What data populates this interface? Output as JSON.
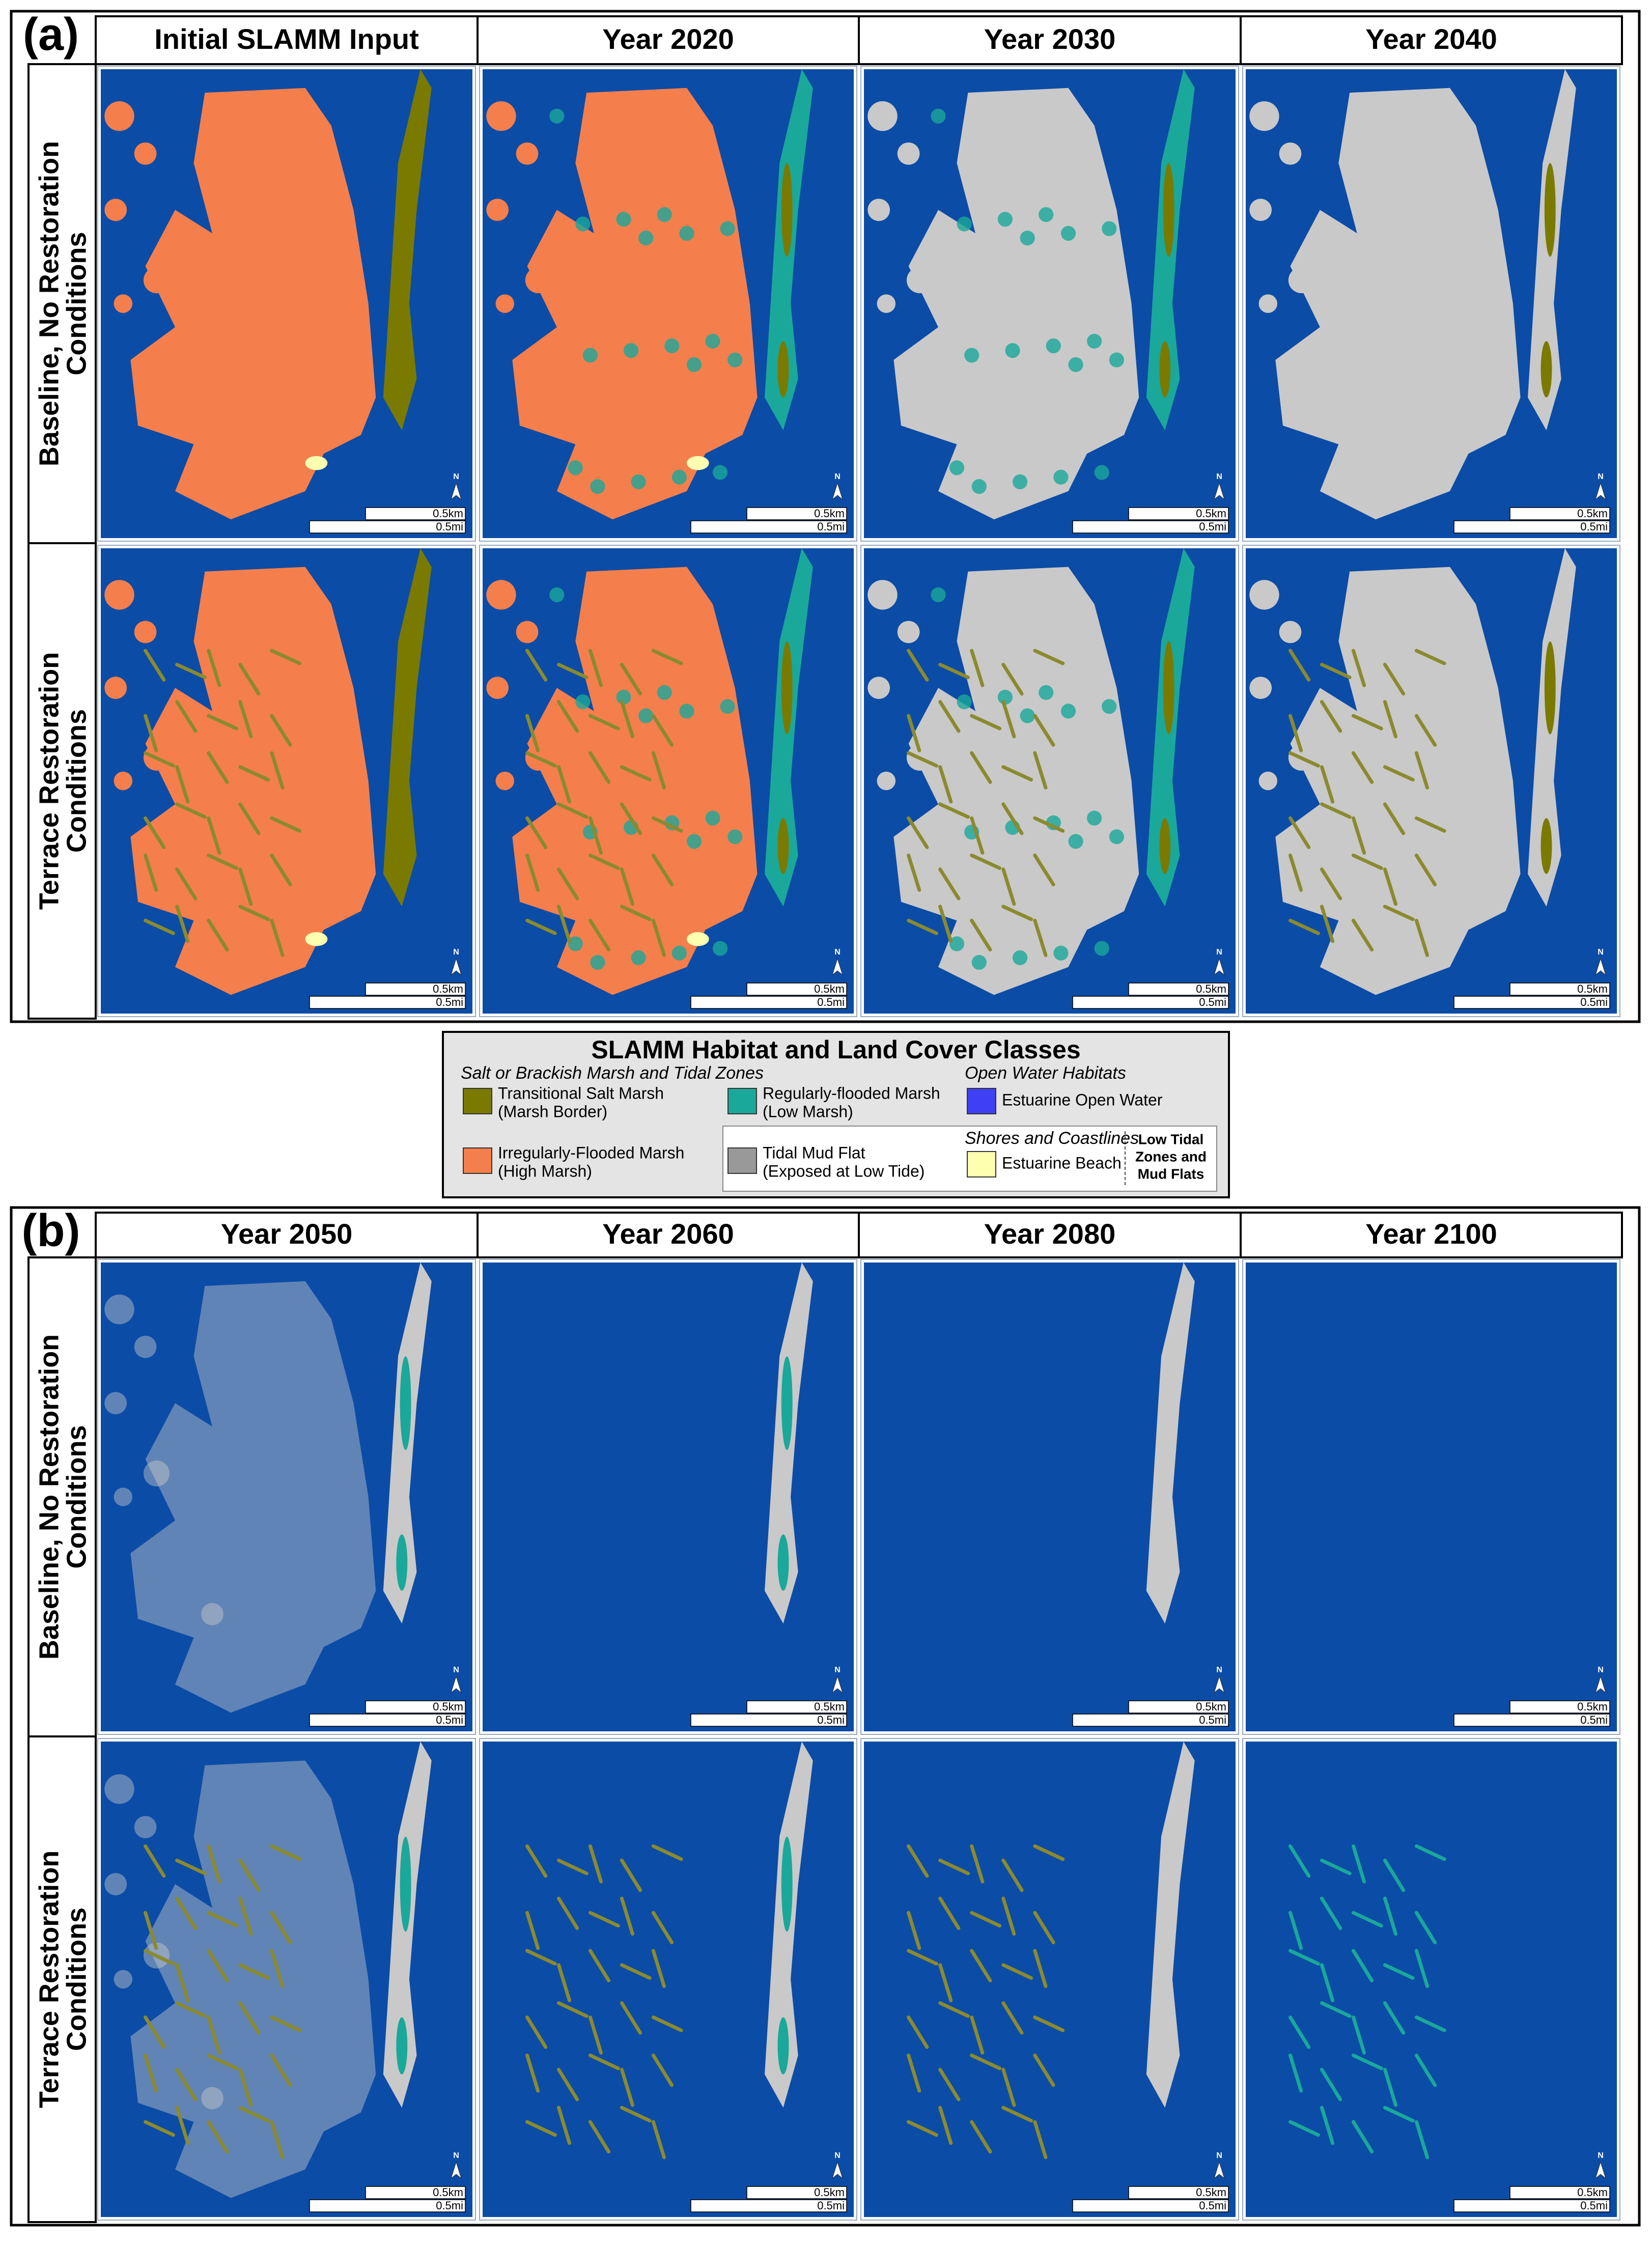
{
  "panels": [
    {
      "label": "(a)",
      "columns": [
        "Initial SLAMM Input",
        "Year 2020",
        "Year 2030",
        "Year 2040"
      ],
      "rows": [
        [
          "Baseline, No Restoration",
          "Conditions"
        ],
        [
          "Terrace Restoration",
          "Conditions"
        ]
      ]
    },
    {
      "label": "(b)",
      "columns": [
        "Year 2050",
        "Year 2060",
        "Year 2080",
        "Year 2100"
      ],
      "rows": [
        [
          "Baseline, No Restoration",
          "Conditions"
        ],
        [
          "Terrace Restoration",
          "Conditions"
        ]
      ]
    }
  ],
  "scale_bar": {
    "north": "N",
    "km": "0.5km",
    "mi": "0.5mi"
  },
  "legend": {
    "title": "SLAMM Habitat and Land Cover Classes",
    "groups": [
      "Salt or Brackish Marsh and Tidal Zones",
      "Open Water Habitats",
      "Shores and Coastlines"
    ],
    "items": [
      {
        "label": [
          "Transitional Salt Marsh",
          "(Marsh Border)"
        ],
        "color": "#7a7a00"
      },
      {
        "label": [
          "Regularly-flooded Marsh",
          "(Low Marsh)"
        ],
        "color": "#1aa89a"
      },
      {
        "label": [
          "Estuarine Open Water"
        ],
        "color": "#3f3ff5"
      },
      {
        "label": [
          "Irregularly-Flooded Marsh",
          "(High Marsh)"
        ],
        "color": "#f47f4c"
      },
      {
        "label": [
          "Tidal Mud Flat",
          "(Exposed at Low Tide)"
        ],
        "color": "#999999"
      },
      {
        "label": [
          "Estuarine Beach"
        ],
        "color": "#ffffb0"
      }
    ],
    "note": [
      "Low Tidal",
      "Zones and",
      "Mud Flats"
    ]
  }
}
